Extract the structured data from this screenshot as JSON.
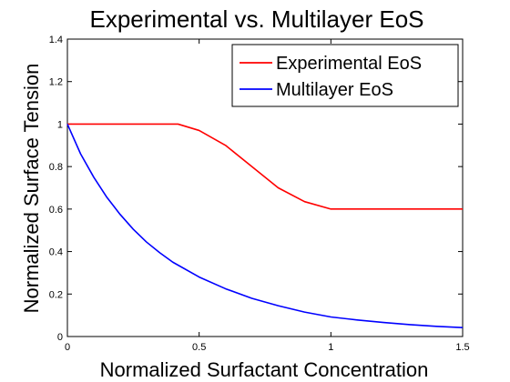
{
  "chart_data": {
    "type": "line",
    "title": "Experimental vs. Multilayer EoS",
    "xlabel": "Normalized Surfactant Concentration",
    "ylabel": "Normalized Surface Tension",
    "xlim": [
      0,
      1.5
    ],
    "ylim": [
      0,
      1.4
    ],
    "xticks": [
      0,
      0.5,
      1,
      1.5
    ],
    "xtick_labels": [
      "0",
      "0.5",
      "1",
      "1.5"
    ],
    "yticks": [
      0,
      0.2,
      0.4,
      0.6,
      0.8,
      1,
      1.2,
      1.4
    ],
    "ytick_labels": [
      "0",
      "0.2",
      "0.4",
      "0.6",
      "0.8",
      "1",
      "1.2",
      "1.4"
    ],
    "grid": false,
    "legend_position": "top-right",
    "series": [
      {
        "name": "Experimental EoS",
        "color": "#ff0000",
        "x": [
          0,
          0.1,
          0.2,
          0.3,
          0.42,
          0.5,
          0.6,
          0.7,
          0.8,
          0.9,
          1.0,
          1.1,
          1.2,
          1.3,
          1.4,
          1.5
        ],
        "y": [
          1,
          1,
          1,
          1,
          1,
          0.97,
          0.9,
          0.8,
          0.7,
          0.635,
          0.6,
          0.6,
          0.6,
          0.6,
          0.6,
          0.6
        ]
      },
      {
        "name": "Multilayer EoS",
        "color": "#0000ff",
        "x": [
          0,
          0.05,
          0.1,
          0.15,
          0.2,
          0.25,
          0.3,
          0.35,
          0.4,
          0.5,
          0.6,
          0.7,
          0.8,
          0.9,
          1.0,
          1.1,
          1.2,
          1.3,
          1.4,
          1.5
        ],
        "y": [
          1,
          0.86,
          0.75,
          0.655,
          0.575,
          0.505,
          0.445,
          0.395,
          0.35,
          0.28,
          0.225,
          0.18,
          0.145,
          0.115,
          0.092,
          0.078,
          0.066,
          0.056,
          0.048,
          0.042
        ]
      }
    ]
  }
}
